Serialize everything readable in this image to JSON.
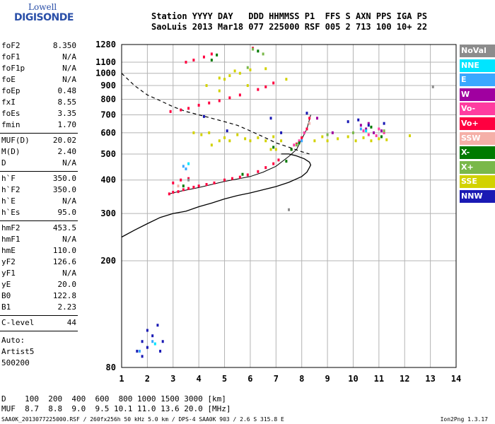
{
  "logo": {
    "line1": "Lowell",
    "line2": "DIGISONDE"
  },
  "header": {
    "line1": "Station YYYY DAY   DDD HHMMSS P1  FFS S AXN PPS IGA PS",
    "line2": "SaoLuis 2013 Mar18 077 225000 RSF 005 2 713 100 10+ 22"
  },
  "params": {
    "group1": [
      {
        "name": "foF2",
        "value": "8.350"
      },
      {
        "name": "foF1",
        "value": "N/A"
      },
      {
        "name": "foF1p",
        "value": "N/A"
      },
      {
        "name": "foE",
        "value": "N/A"
      },
      {
        "name": "foEp",
        "value": "0.48"
      },
      {
        "name": "fxI",
        "value": "8.55"
      },
      {
        "name": "foEs",
        "value": "3.35"
      },
      {
        "name": "fmin",
        "value": "1.70"
      }
    ],
    "group2": [
      {
        "name": "MUF(D)",
        "value": "20.02"
      },
      {
        "name": "M(D)",
        "value": "2.40"
      },
      {
        "name": "D",
        "value": "N/A"
      }
    ],
    "group3": [
      {
        "name": "h`F",
        "value": "350.0"
      },
      {
        "name": "h`F2",
        "value": "350.0"
      },
      {
        "name": "h`E",
        "value": "N/A"
      },
      {
        "name": "h`Es",
        "value": "95.0"
      }
    ],
    "group4": [
      {
        "name": "hmF2",
        "value": "453.5"
      },
      {
        "name": "hmF1",
        "value": "N/A"
      },
      {
        "name": "hmE",
        "value": "110.0"
      },
      {
        "name": "yF2",
        "value": "126.6"
      },
      {
        "name": "yF1",
        "value": "N/A"
      },
      {
        "name": "yE",
        "value": "20.0"
      },
      {
        "name": "B0",
        "value": "122.8"
      },
      {
        "name": "B1",
        "value": "2.23"
      }
    ],
    "group5": [
      {
        "name": "C-level",
        "value": "44"
      }
    ]
  },
  "auto": {
    "line1": "Auto:",
    "line2": "Artist5",
    "line3": "500200"
  },
  "legend": [
    {
      "label": "NoVal",
      "color": "#8c8c8c"
    },
    {
      "label": "NNE",
      "color": "#00e5ff"
    },
    {
      "label": "E",
      "color": "#3aa8ff"
    },
    {
      "label": "W",
      "color": "#a000a0"
    },
    {
      "label": "Vo-",
      "color": "#ff3ca0"
    },
    {
      "label": "Vo+",
      "color": "#ff0040"
    },
    {
      "label": "SSW",
      "color": "#f5b0a8"
    },
    {
      "label": "X-",
      "color": "#007a00"
    },
    {
      "label": "X+",
      "color": "#7ab84a"
    },
    {
      "label": "SSE",
      "color": "#d2d200"
    },
    {
      "label": "NNW",
      "color": "#1a1ab4"
    }
  ],
  "chart_data": {
    "type": "scatter",
    "title": "",
    "xlabel": "",
    "ylabel": "",
    "xlim": [
      1,
      14
    ],
    "ylim": [
      80,
      1280
    ],
    "y_scale": "log",
    "grid": true,
    "x_ticks": [
      1,
      2,
      3,
      4,
      5,
      6,
      7,
      8,
      9,
      10,
      11,
      12,
      13,
      14
    ],
    "y_ticks": [
      80,
      200,
      300,
      400,
      500,
      600,
      700,
      800,
      900,
      1000,
      1100,
      1280
    ],
    "series": [
      {
        "name": "Vo+",
        "color": "#ff0040",
        "points": [
          [
            2.85,
            355
          ],
          [
            3.0,
            360
          ],
          [
            3.2,
            362
          ],
          [
            3.4,
            368
          ],
          [
            3.6,
            372
          ],
          [
            3.8,
            376
          ],
          [
            4.0,
            380
          ],
          [
            4.3,
            385
          ],
          [
            4.6,
            390
          ],
          [
            5.0,
            400
          ],
          [
            5.3,
            405
          ],
          [
            5.6,
            410
          ],
          [
            5.9,
            418
          ],
          [
            6.3,
            430
          ],
          [
            6.6,
            445
          ],
          [
            6.9,
            460
          ],
          [
            7.1,
            475
          ],
          [
            7.6,
            520
          ],
          [
            7.8,
            545
          ],
          [
            8.0,
            575
          ],
          [
            8.2,
            620
          ],
          [
            8.3,
            680
          ],
          [
            2.9,
            720
          ],
          [
            3.3,
            730
          ],
          [
            3.6,
            740
          ],
          [
            4.0,
            760
          ],
          [
            4.4,
            775
          ],
          [
            4.8,
            790
          ],
          [
            5.2,
            810
          ],
          [
            5.6,
            830
          ],
          [
            6.3,
            870
          ],
          [
            6.6,
            890
          ],
          [
            6.9,
            920
          ],
          [
            3.5,
            1100
          ],
          [
            3.8,
            1120
          ],
          [
            4.2,
            1150
          ],
          [
            4.5,
            1180
          ],
          [
            6.1,
            1240
          ],
          [
            3.0,
            390
          ],
          [
            3.3,
            400
          ],
          [
            3.6,
            405
          ]
        ]
      },
      {
        "name": "Vo-",
        "color": "#ff3ca0",
        "points": [
          [
            7.7,
            540
          ],
          [
            7.9,
            560
          ],
          [
            8.1,
            600
          ],
          [
            10.6,
            590
          ],
          [
            10.9,
            585
          ],
          [
            11.2,
            600
          ],
          [
            10.4,
            610
          ],
          [
            11.0,
            620
          ]
        ]
      },
      {
        "name": "W",
        "color": "#a000a0",
        "points": [
          [
            10.3,
            640
          ],
          [
            10.5,
            620
          ],
          [
            10.8,
            600
          ],
          [
            11.1,
            610
          ],
          [
            10.6,
            650
          ],
          [
            9.2,
            600
          ],
          [
            8.6,
            680
          ]
        ]
      },
      {
        "name": "NNW",
        "color": "#1a1ab4",
        "points": [
          [
            1.6,
            92
          ],
          [
            1.8,
            100
          ],
          [
            2.0,
            110
          ],
          [
            2.2,
            105
          ],
          [
            2.4,
            115
          ],
          [
            2.6,
            100
          ],
          [
            2.0,
            95
          ],
          [
            1.8,
            88
          ],
          [
            2.5,
            92
          ],
          [
            9.8,
            660
          ],
          [
            10.2,
            670
          ],
          [
            10.6,
            640
          ],
          [
            11.2,
            650
          ],
          [
            6.8,
            680
          ],
          [
            8.2,
            710
          ],
          [
            4.2,
            690
          ],
          [
            7.2,
            600
          ],
          [
            5.1,
            610
          ]
        ]
      },
      {
        "name": "SSE",
        "color": "#d2d200",
        "points": [
          [
            4.8,
            560
          ],
          [
            5.0,
            575
          ],
          [
            5.2,
            560
          ],
          [
            5.5,
            590
          ],
          [
            5.8,
            570
          ],
          [
            6.0,
            560
          ],
          [
            6.3,
            575
          ],
          [
            6.6,
            560
          ],
          [
            6.9,
            580
          ],
          [
            7.2,
            560
          ],
          [
            8.5,
            560
          ],
          [
            8.8,
            580
          ],
          [
            9.0,
            560
          ],
          [
            9.4,
            570
          ],
          [
            9.8,
            580
          ],
          [
            10.1,
            560
          ],
          [
            10.4,
            575
          ],
          [
            10.7,
            560
          ],
          [
            11.0,
            570
          ],
          [
            11.3,
            565
          ],
          [
            12.2,
            585
          ],
          [
            3.8,
            600
          ],
          [
            4.1,
            590
          ],
          [
            4.4,
            600
          ],
          [
            5.2,
            980
          ],
          [
            5.6,
            1000
          ],
          [
            5.4,
            1020
          ],
          [
            4.8,
            960
          ],
          [
            6.0,
            1030
          ],
          [
            6.6,
            1040
          ],
          [
            7.4,
            950
          ],
          [
            5.0,
            950
          ],
          [
            4.3,
            900
          ],
          [
            4.8,
            860
          ],
          [
            5.9,
            900
          ],
          [
            4.5,
            540
          ],
          [
            6.8,
            520
          ],
          [
            7.0,
            520
          ]
        ]
      },
      {
        "name": "X-",
        "color": "#007a00",
        "points": [
          [
            6.9,
            530
          ],
          [
            7.6,
            520
          ],
          [
            7.9,
            550
          ],
          [
            10.7,
            630
          ],
          [
            11.1,
            580
          ],
          [
            7.4,
            470
          ],
          [
            5.7,
            420
          ],
          [
            3.4,
            380
          ],
          [
            6.3,
            1210
          ],
          [
            4.7,
            1170
          ],
          [
            4.5,
            1120
          ]
        ]
      },
      {
        "name": "X+",
        "color": "#7ab84a",
        "points": [
          [
            6.5,
            1180
          ],
          [
            5.9,
            1050
          ],
          [
            6.1,
            1230
          ],
          [
            7.8,
            540
          ],
          [
            11.2,
            610
          ],
          [
            9.0,
            590
          ],
          [
            10.0,
            600
          ]
        ]
      },
      {
        "name": "E",
        "color": "#3aa8ff",
        "points": [
          [
            2.2,
            100
          ],
          [
            1.7,
            92
          ],
          [
            3.4,
            450
          ],
          [
            3.5,
            440
          ],
          [
            10.3,
            620
          ],
          [
            8.0,
            560
          ]
        ]
      },
      {
        "name": "NNE",
        "color": "#00e5ff",
        "points": [
          [
            3.6,
            460
          ],
          [
            10.5,
            610
          ],
          [
            2.3,
            98
          ]
        ]
      },
      {
        "name": "SSW",
        "color": "#f5b0a8",
        "points": [
          [
            8.3,
            650
          ],
          [
            3.2,
            380
          ]
        ]
      },
      {
        "name": "NoVal",
        "color": "#8c8c8c",
        "points": [
          [
            13.1,
            890
          ],
          [
            7.5,
            310
          ],
          [
            3.6,
            400
          ]
        ]
      }
    ],
    "curves": {
      "profile": [
        [
          1.0,
          245
        ],
        [
          1.5,
          260
        ],
        [
          2.0,
          275
        ],
        [
          2.5,
          290
        ],
        [
          3.0,
          300
        ],
        [
          3.5,
          306
        ],
        [
          4.0,
          318
        ],
        [
          4.5,
          328
        ],
        [
          5.0,
          340
        ],
        [
          5.5,
          350
        ],
        [
          6.0,
          358
        ],
        [
          6.5,
          368
        ],
        [
          7.0,
          378
        ],
        [
          7.5,
          392
        ],
        [
          8.0,
          412
        ],
        [
          8.2,
          428
        ],
        [
          8.3,
          445
        ],
        [
          8.35,
          455
        ],
        [
          8.3,
          466
        ],
        [
          8.1,
          480
        ],
        [
          7.8,
          492
        ],
        [
          7.5,
          500
        ],
        [
          7.2,
          500
        ]
      ],
      "muf": [
        [
          1.0,
          1000
        ],
        [
          1.5,
          900
        ],
        [
          2.0,
          830
        ],
        [
          2.5,
          790
        ],
        [
          3.0,
          750
        ],
        [
          3.5,
          720
        ],
        [
          4.0,
          700
        ],
        [
          4.5,
          680
        ],
        [
          5.0,
          660
        ],
        [
          5.5,
          640
        ],
        [
          6.0,
          610
        ],
        [
          6.5,
          580
        ],
        [
          7.0,
          550
        ],
        [
          7.5,
          530
        ],
        [
          8.0,
          510
        ],
        [
          8.3,
          500
        ]
      ],
      "trace_lower": [
        [
          2.85,
          355
        ],
        [
          3.2,
          362
        ],
        [
          4.0,
          375
        ],
        [
          5.0,
          395
        ],
        [
          6.0,
          412
        ],
        [
          6.5,
          428
        ],
        [
          7.0,
          450
        ],
        [
          7.5,
          490
        ],
        [
          7.8,
          520
        ],
        [
          8.2,
          620
        ],
        [
          8.35,
          700
        ]
      ]
    }
  },
  "bottom_table": {
    "line1": "D    100  200  400  600  800 1000 1500 3000 [km]",
    "line2": "MUF  8.7  8.8  9.0  9.5 10.1 11.0 13.6 20.0 [MHz]"
  },
  "footer": {
    "left": "SAA0K_2013077225000.RSF / 260fx256h 50 kHz 5.0 km / DPS-4 SAA0K 903 / 2.6 S 315.8 E",
    "right": "Ion2Png 1.3.17"
  }
}
